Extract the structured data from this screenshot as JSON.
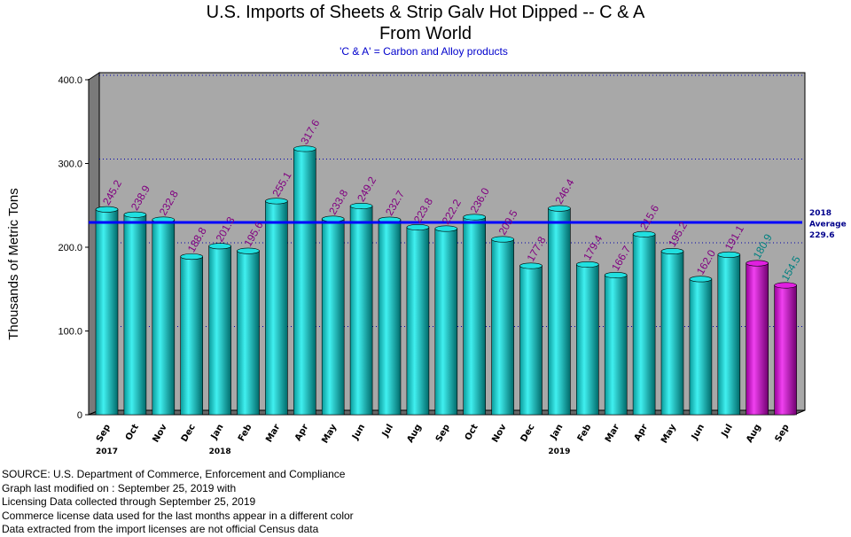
{
  "chart_data": {
    "type": "bar",
    "title": "U.S. Imports of Sheets & Strip Galv Hot Dipped -- C & A",
    "title_line2": "From World",
    "subtitle": "'C & A' = Carbon and Alloy products",
    "ylabel": "Thousands of Metric Tons",
    "xlabel": "",
    "ylim": [
      0,
      400
    ],
    "yticks": [
      "0",
      "100.0",
      "200.0",
      "300.0",
      "400.0"
    ],
    "grid": true,
    "categories": [
      "Sep",
      "Oct",
      "Nov",
      "Dec",
      "Jan",
      "Feb",
      "Mar",
      "Apr",
      "May",
      "Jun",
      "Jul",
      "Aug",
      "Sep",
      "Oct",
      "Nov",
      "Dec",
      "Jan",
      "Feb",
      "Mar",
      "Apr",
      "May",
      "Jun",
      "Jul",
      "Aug",
      "Sep"
    ],
    "year_labels": [
      {
        "index": 0,
        "text": "2017"
      },
      {
        "index": 4,
        "text": "2018"
      },
      {
        "index": 16,
        "text": "2019"
      }
    ],
    "values": [
      245.2,
      238.9,
      232.8,
      188.8,
      201.3,
      195.6,
      255.1,
      317.6,
      233.8,
      249.2,
      232.7,
      223.8,
      222.2,
      236.0,
      209.5,
      177.8,
      246.4,
      179.4,
      166.7,
      215.6,
      195.2,
      162.0,
      191.1,
      180.9,
      154.5
    ],
    "value_labels": [
      "245.2",
      "238.9",
      "232.8",
      "188.8",
      "201.3",
      "195.6",
      "255.1",
      "317.6",
      "233.8",
      "249.2",
      "232.7",
      "223.8",
      "222.2",
      "236.0",
      "209.5",
      "177.8",
      "246.4",
      "179.4",
      "166.7",
      "215.6",
      "195.2",
      "162.0",
      "191.1",
      "180.9",
      "154.5"
    ],
    "license_data_from_index": 23,
    "average": {
      "value": 229.6,
      "label_lines": [
        "2018",
        "Average",
        "229.6"
      ]
    },
    "colors": {
      "bar": "#00c8c8",
      "bar_license": "#c000c0",
      "plot_bg": "#a8a8a8",
      "label": "#800080",
      "label_license": "#008080",
      "average_line": "#0000ff",
      "grid": "#0000aa"
    }
  },
  "footer": {
    "lines": [
      "SOURCE: U.S. Department of Commerce, Enforcement and Compliance",
      "Graph last modified on : September 25, 2019 with",
      "Licensing Data collected through September 25, 2019",
      "Commerce license data used for the last months appear in a different color",
      "Data extracted from the import licenses are not official Census data"
    ]
  }
}
